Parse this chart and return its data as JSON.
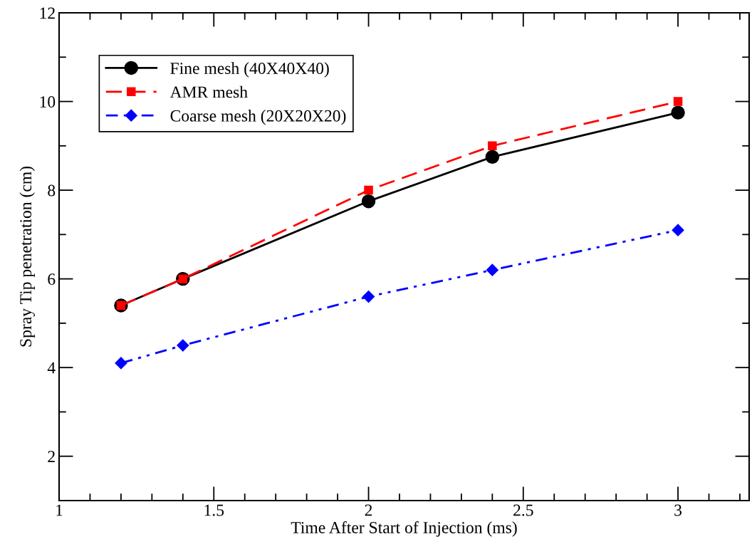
{
  "chart_data": {
    "type": "line",
    "xlabel": "Time After Start of Injection (ms)",
    "ylabel": "Spray Tip penetration (cm)",
    "x": [
      1.2,
      1.4,
      2.0,
      2.4,
      3.0
    ],
    "series": [
      {
        "name": "Fine mesh (40X40X40)",
        "color": "#000000",
        "marker": "circle",
        "line_style": "solid",
        "values": [
          5.4,
          6.0,
          7.75,
          8.75,
          9.75
        ]
      },
      {
        "name": "AMR mesh",
        "color": "#ff0000",
        "marker": "square",
        "line_style": "dashed",
        "values": [
          5.4,
          6.0,
          8.0,
          9.0,
          10.0
        ]
      },
      {
        "name": "Coarse mesh (20X20X20)",
        "color": "#0000ff",
        "marker": "diamond",
        "line_style": "dashdotdot",
        "values": [
          4.1,
          4.5,
          5.6,
          6.2,
          7.1
        ]
      }
    ],
    "xlim": [
      1,
      3.23
    ],
    "xticks": [
      1,
      1.5,
      2,
      2.5,
      3
    ],
    "ylim": [
      1,
      12
    ],
    "yticks": [
      2,
      4,
      6,
      8,
      10,
      12
    ],
    "grid": false,
    "legend": "top left"
  }
}
